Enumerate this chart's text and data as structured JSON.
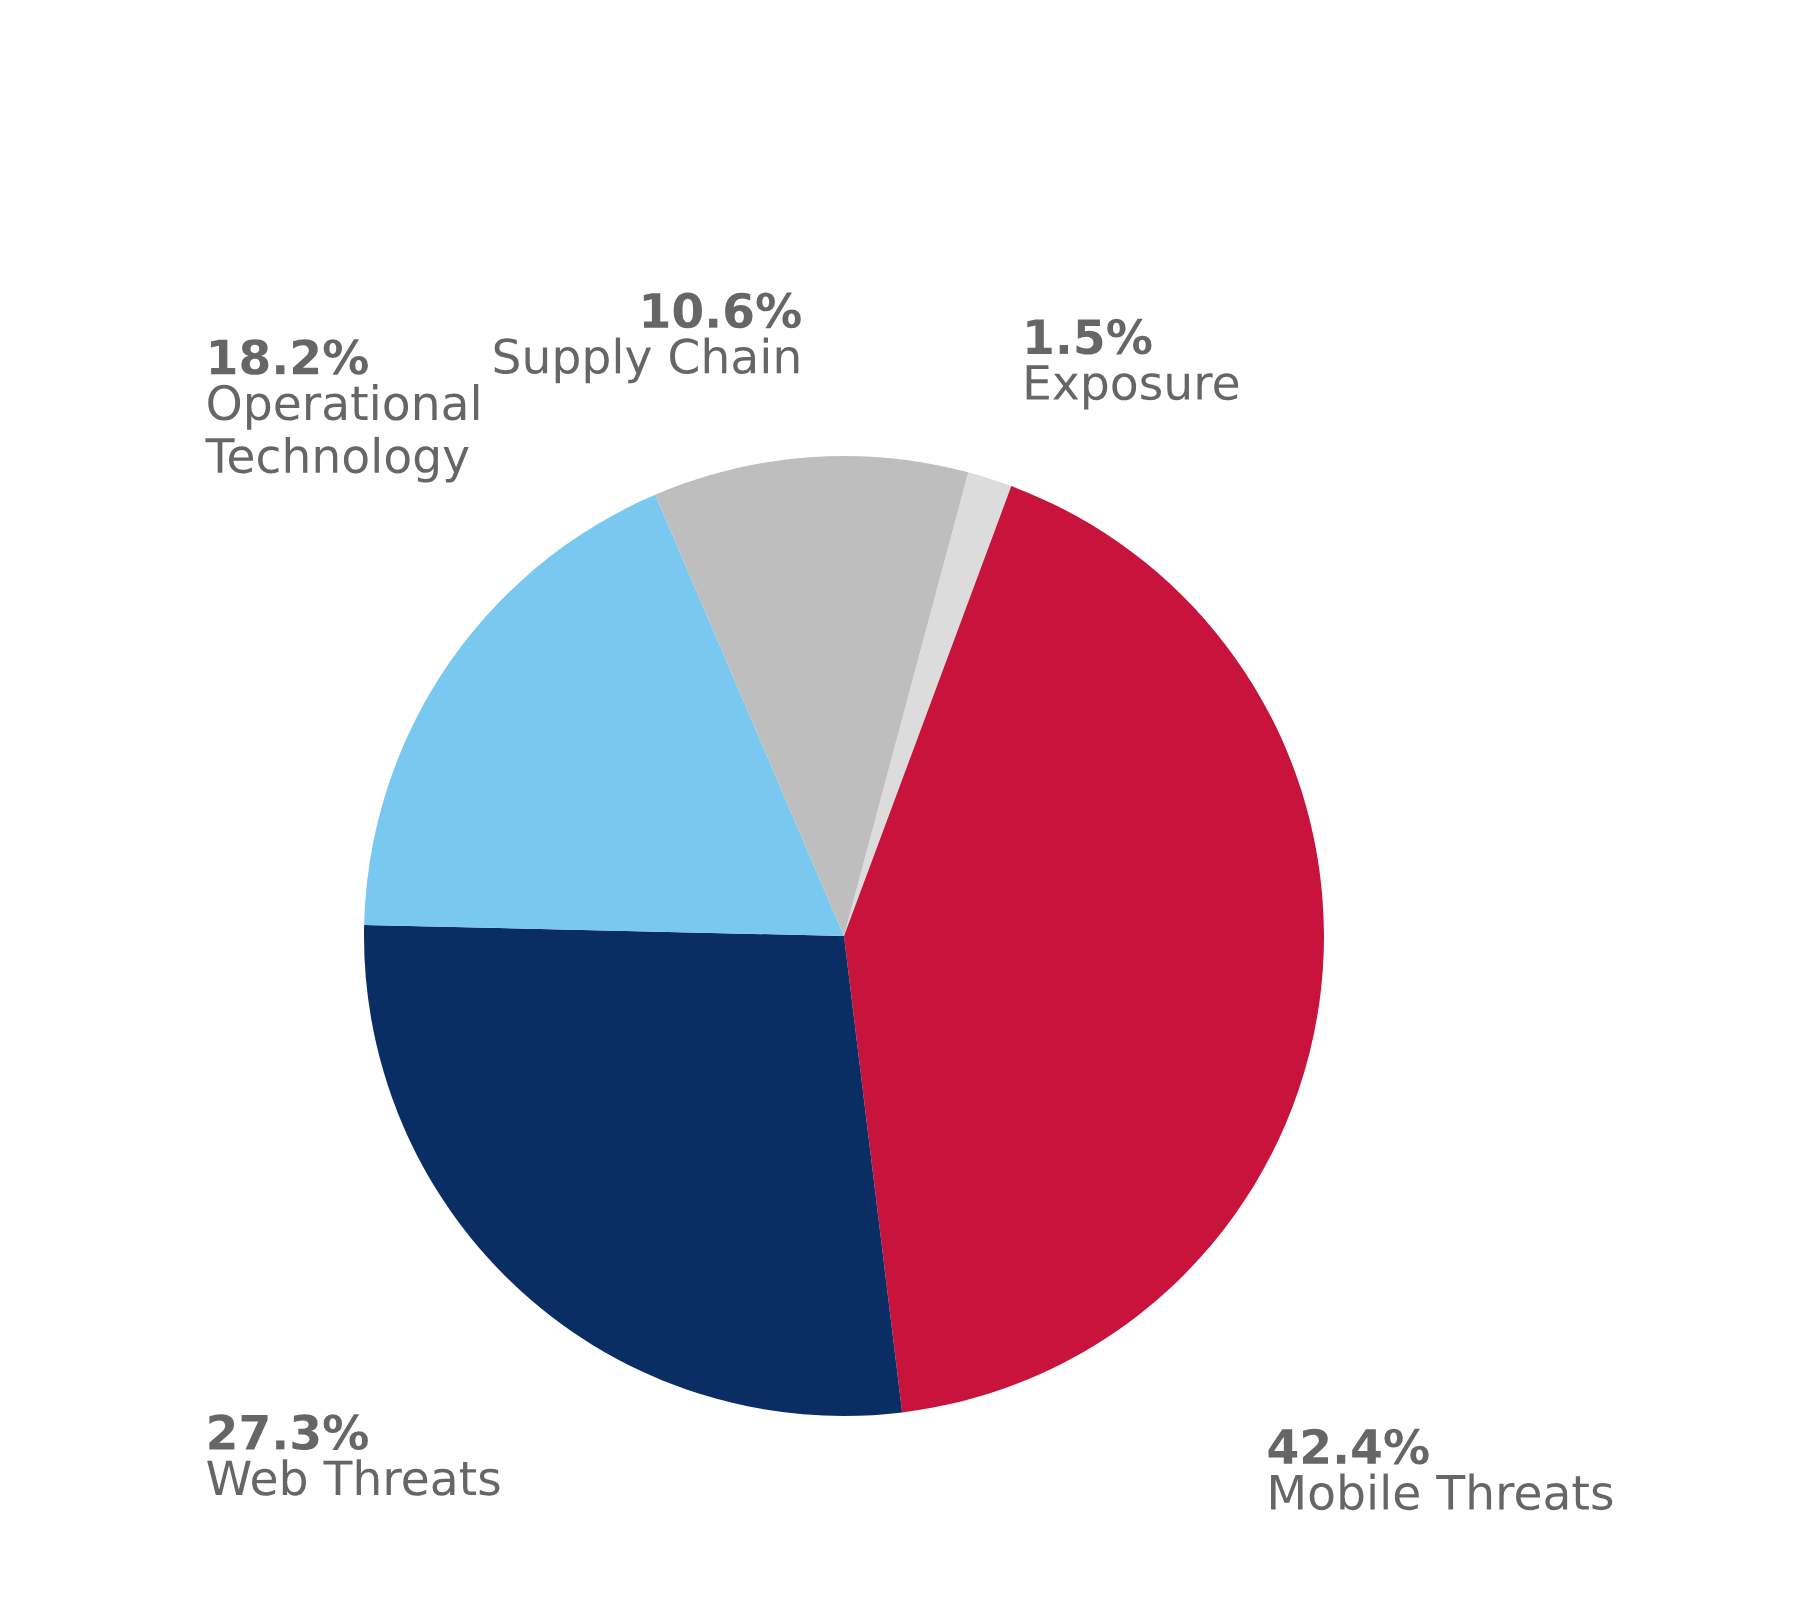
{
  "chart_data": {
    "type": "pie",
    "categories": [
      "Exposure",
      "Mobile Threats",
      "Web Threats",
      "Operational\nTechnology",
      "Supply Chain"
    ],
    "values": [
      1.5,
      42.4,
      27.3,
      18.2,
      10.6
    ],
    "value_labels": [
      "1.5%",
      "42.4%",
      "27.3%",
      "18.2%",
      "10.6%"
    ],
    "colors": [
      "#dcdcdc",
      "#c8143c",
      "#0a2d64",
      "#78c8f0",
      "#bebebe"
    ]
  }
}
